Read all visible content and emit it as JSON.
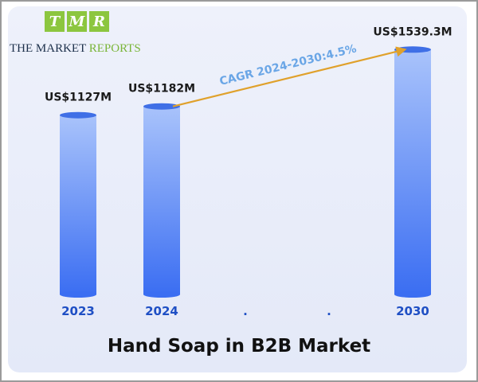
{
  "brand": {
    "tiles": [
      "T",
      "M",
      "R"
    ],
    "line_a": "THE MARKET ",
    "line_b": "REPORTS"
  },
  "chart_data": {
    "type": "bar",
    "title": "Hand Soap in B2B Market",
    "categories": [
      "2023",
      "2024",
      ".",
      ".",
      "2030"
    ],
    "values": [
      1127,
      1182,
      null,
      null,
      1539.3
    ],
    "value_labels": [
      "US$1127M",
      "US$1182M",
      "",
      "",
      "US$1539.3M"
    ],
    "annotation": {
      "text": "CAGR 2024-2030:4.5%",
      "from": "2024",
      "to": "2030"
    },
    "colors": {
      "bar_top": "#a9c3fb",
      "bar_bottom": "#3b6ef2",
      "bar_cap": "#3f6fe6",
      "arrow": "#e0a12b",
      "annotation_text": "#6aa6e6",
      "category_text": "#1f4fc4",
      "value_text": "#1a1a1a"
    }
  }
}
